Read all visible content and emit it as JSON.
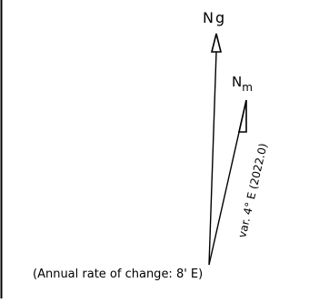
{
  "grid_north": {
    "label": "N",
    "subscript": "g"
  },
  "magnetic_north": {
    "label": "N",
    "subscript": "m"
  },
  "variation_note": "var. 4° E (2022.0)",
  "annual_change_note": "(Annual rate of change: 8' E)",
  "colors": {
    "line": "#000000",
    "background": "#ffffff"
  }
}
